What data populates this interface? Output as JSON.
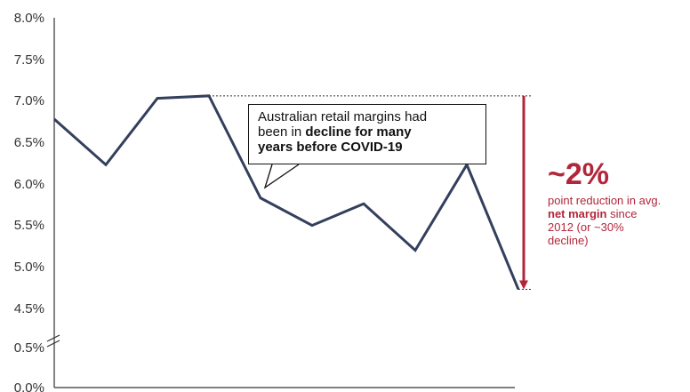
{
  "chart_data": {
    "type": "line",
    "title": "",
    "xlabel": "",
    "ylabel": "",
    "y_ticks": [
      "8.0%",
      "7.5%",
      "7.0%",
      "6.5%",
      "6.0%",
      "5.5%",
      "5.0%",
      "4.5%",
      "0.5%",
      "0.0%"
    ],
    "ylim": [
      4.5,
      8.0
    ],
    "axis_break": true,
    "grid": false,
    "series": [
      {
        "values": [
          6.78,
          6.23,
          7.03,
          7.06,
          5.83,
          5.5,
          5.76,
          5.2,
          6.23,
          4.73
        ]
      }
    ],
    "reference_lines": [
      7.06,
      4.73
    ]
  },
  "callout": {
    "line1": "Australian retail margins had",
    "line2_start": "been in ",
    "line2_bold": "decline for many",
    "line3_bold": "years before COVID-19"
  },
  "annotation": {
    "value": "~2%",
    "line1": "point reduction in avg.",
    "bold": "net margin",
    "after_bold": " since",
    "line3": "2012 (or ~30%",
    "line4": "decline)"
  },
  "colors": {
    "line": "#333f5c",
    "accent": "#b3263a",
    "axis": "#333333",
    "text": "#333333"
  }
}
